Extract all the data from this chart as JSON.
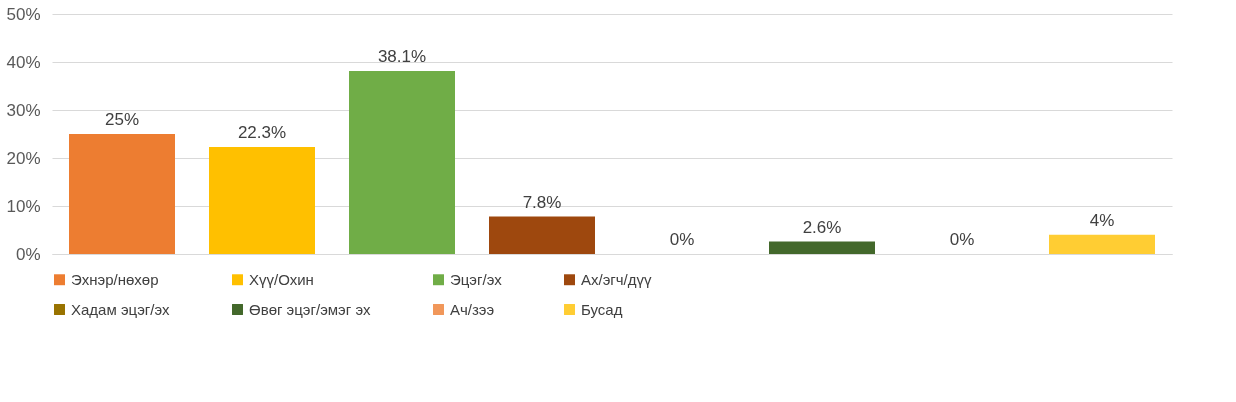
{
  "chart_data": {
    "type": "bar",
    "categories": [
      null,
      null,
      null,
      null,
      null,
      null,
      null,
      null
    ],
    "series": [
      {
        "name": "Эхнэр/нөхөр",
        "color": "#ed7d31",
        "values": [
          25,
          null,
          null,
          null,
          null,
          null,
          null,
          null
        ],
        "value_labels": [
          "25%",
          null,
          null,
          null,
          null,
          null,
          null,
          null
        ]
      },
      {
        "name": "Хүү/Охин",
        "color": "#ffc000",
        "values": [
          null,
          22.3,
          null,
          null,
          null,
          null,
          null,
          null
        ],
        "value_labels": [
          null,
          "22.3%",
          null,
          null,
          null,
          null,
          null,
          null
        ]
      },
      {
        "name": "Эцэг/эх",
        "color": "#70ad47",
        "values": [
          null,
          null,
          38.1,
          null,
          null,
          null,
          null,
          null
        ],
        "value_labels": [
          null,
          null,
          "38.1%",
          null,
          null,
          null,
          null,
          null
        ]
      },
      {
        "name": "Ах/эгч/дүү",
        "color": "#9e480e",
        "values": [
          null,
          null,
          null,
          7.8,
          null,
          null,
          null,
          null
        ],
        "value_labels": [
          null,
          null,
          null,
          "7.8%",
          null,
          null,
          null,
          null
        ]
      },
      {
        "name": "Хадам эцэг/эх",
        "color": "#997300",
        "values": [
          null,
          null,
          null,
          null,
          0,
          null,
          null,
          null
        ],
        "value_labels": [
          null,
          null,
          null,
          null,
          "0%",
          null,
          null,
          null
        ]
      },
      {
        "name": "Өвөг эцэг/эмэг эх",
        "color": "#43682b",
        "values": [
          null,
          null,
          null,
          null,
          null,
          2.6,
          null,
          null
        ],
        "value_labels": [
          null,
          null,
          null,
          null,
          null,
          "2.6%",
          null,
          null
        ]
      },
      {
        "name": "Ач/зээ",
        "color": "#f1975a",
        "values": [
          null,
          null,
          null,
          null,
          null,
          null,
          0,
          null
        ],
        "value_labels": [
          null,
          null,
          null,
          null,
          null,
          null,
          "0%",
          null
        ]
      },
      {
        "name": "Бусад",
        "color": "#ffcd33",
        "values": [
          null,
          null,
          null,
          null,
          null,
          null,
          null,
          4
        ],
        "value_labels": [
          null,
          null,
          null,
          null,
          null,
          null,
          null,
          "4%"
        ]
      }
    ],
    "ylim": [
      0,
      50
    ],
    "yticks": [
      {
        "value": 0,
        "label": "0%"
      },
      {
        "value": 10,
        "label": "10%"
      },
      {
        "value": 20,
        "label": "20%"
      },
      {
        "value": 30,
        "label": "30%"
      },
      {
        "value": 40,
        "label": "40%"
      },
      {
        "value": 50,
        "label": "50%"
      }
    ],
    "grid": "y",
    "legend": "bottom"
  }
}
